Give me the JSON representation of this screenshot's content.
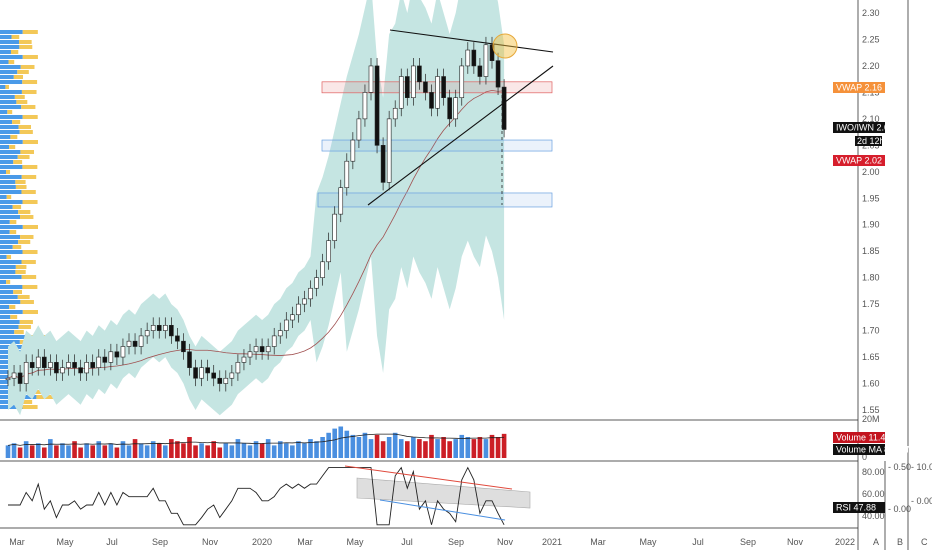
{
  "price_axis": {
    "ticks": [
      "2.30",
      "2.25",
      "2.20",
      "2.15",
      "2.10",
      "2.05",
      "2.00",
      "1.95",
      "1.90",
      "1.85",
      "1.80",
      "1.75",
      "1.70",
      "1.65",
      "1.60",
      "1.55"
    ]
  },
  "volume_axis": {
    "ticks": [
      "20M",
      "10M",
      "0"
    ]
  },
  "rsi_axis": {
    "ticks": [
      "80.00",
      "60.00",
      "40.00"
    ]
  },
  "small_axis": {
    "ticks": [
      "0.50",
      "0.00"
    ],
    "right_tick": "10.00"
  },
  "time_axis": {
    "labels": [
      "Mar",
      "May",
      "Jul",
      "Sep",
      "Nov",
      "2020",
      "Mar",
      "May",
      "Jul",
      "Sep",
      "Nov",
      "2021",
      "Mar",
      "May",
      "Jul",
      "Sep",
      "Nov",
      "2022"
    ],
    "footer_buttons": [
      "A",
      "B",
      "C"
    ]
  },
  "tags": {
    "vwap_orange": {
      "name": "VWAP",
      "value": "2.16",
      "color": "#f5913a"
    },
    "symbol": {
      "name": "IWO/IWN",
      "value": "2.08",
      "countdown": "2d 12h"
    },
    "vwap_red": {
      "name": "VWAP",
      "value": "2.02",
      "color": "#d61e2c"
    },
    "volume": {
      "name": "Volume",
      "value": "11.497M",
      "color": "#c3141f"
    },
    "volume_ma": {
      "name": "Volume MA",
      "value": "8.473M"
    },
    "rsi": {
      "name": "RSI",
      "value": "47.88"
    }
  },
  "colors": {
    "up": "#ffffff",
    "down": "#111111",
    "band": "#c5e5e2",
    "vol_up": "#4a8fe0",
    "vol_down": "#cc1f26",
    "profile_blue": "#4a9ae8",
    "profile_yellow": "#f3c858"
  },
  "chart_data": {
    "type": "candlestick",
    "symbol": "IWO/IWN",
    "price_range": [
      1.53,
      2.32
    ],
    "weekly_close": [
      1.61,
      1.62,
      1.6,
      1.64,
      1.63,
      1.65,
      1.63,
      1.64,
      1.62,
      1.63,
      1.64,
      1.63,
      1.62,
      1.64,
      1.63,
      1.65,
      1.64,
      1.66,
      1.65,
      1.67,
      1.68,
      1.67,
      1.69,
      1.7,
      1.71,
      1.7,
      1.71,
      1.69,
      1.68,
      1.66,
      1.63,
      1.61,
      1.63,
      1.62,
      1.61,
      1.6,
      1.61,
      1.62,
      1.64,
      1.65,
      1.66,
      1.67,
      1.66,
      1.67,
      1.69,
      1.7,
      1.72,
      1.73,
      1.75,
      1.76,
      1.78,
      1.8,
      1.83,
      1.87,
      1.92,
      1.97,
      2.02,
      2.06,
      2.1,
      2.15,
      2.2,
      2.05,
      1.98,
      2.1,
      2.12,
      2.18,
      2.14,
      2.2,
      2.17,
      2.15,
      2.12,
      2.18,
      2.14,
      2.1,
      2.14,
      2.2,
      2.23,
      2.2,
      2.18,
      2.24,
      2.21,
      2.16,
      2.08
    ],
    "volume_millions": [
      6,
      7,
      5,
      8,
      6,
      7,
      5,
      9,
      6,
      7,
      6,
      8,
      5,
      7,
      6,
      8,
      6,
      7,
      5,
      8,
      6,
      9,
      7,
      6,
      8,
      7,
      6,
      9,
      8,
      7,
      10,
      6,
      7,
      6,
      8,
      5,
      7,
      6,
      9,
      7,
      6,
      8,
      7,
      9,
      6,
      8,
      7,
      6,
      8,
      7,
      9,
      8,
      10,
      12,
      14,
      15,
      13,
      11,
      10,
      12,
      9,
      11,
      8,
      10,
      12,
      9,
      8,
      10,
      9,
      8,
      11,
      9,
      10,
      8,
      9,
      11,
      10,
      9,
      10,
      9,
      11,
      10,
      11.5
    ],
    "rsi": {
      "last": 47.88,
      "levels": [
        80,
        60,
        40
      ]
    },
    "annotations": {
      "vwap_anchored": 2.16,
      "vwap_long": 2.02,
      "zones": [
        2.16,
        2.05,
        1.95
      ],
      "triangle": "ascending support line and descending resistance line",
      "rsi_divergence": "price higher, RSI lower"
    }
  }
}
